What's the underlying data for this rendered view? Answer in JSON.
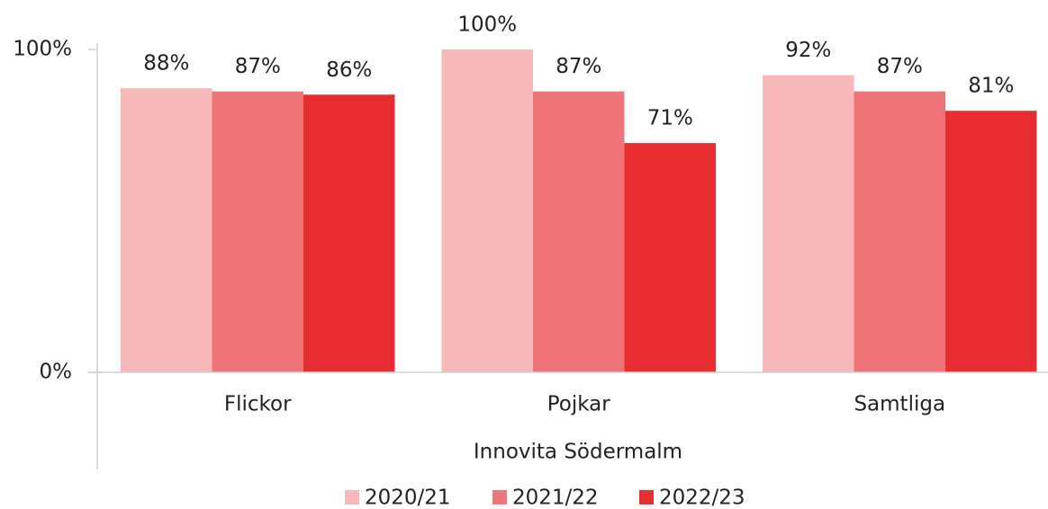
{
  "chart_data": {
    "type": "bar",
    "categories": [
      "Flickor",
      "Pojkar",
      "Samtliga"
    ],
    "x_label": "Innovita Södermalm",
    "series": [
      {
        "name": "2020/21",
        "color": "#f7b8b9",
        "values": [
          88,
          100,
          92
        ],
        "value_labels": [
          "88%",
          "100%",
          "92%"
        ]
      },
      {
        "name": "2021/22",
        "color": "#f07477",
        "values": [
          87,
          87,
          87
        ],
        "value_labels": [
          "87%",
          "87%",
          "87%"
        ]
      },
      {
        "name": "2022/23",
        "color": "#e82d30",
        "values": [
          86,
          71,
          81
        ],
        "value_labels": [
          "86%",
          "71%",
          "81%"
        ]
      }
    ],
    "ylim": [
      0,
      100
    ],
    "yticks": [
      {
        "value": 0,
        "label": "0%"
      },
      {
        "value": 100,
        "label": "100%"
      }
    ],
    "legend": "bottom"
  }
}
